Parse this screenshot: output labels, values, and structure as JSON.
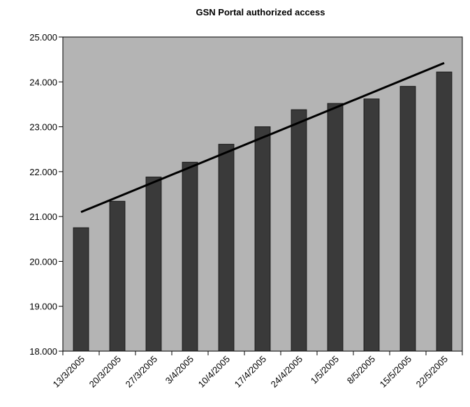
{
  "chart_data": {
    "type": "bar",
    "title": "GSN Portal authorized access",
    "xlabel": "",
    "ylabel": "",
    "categories": [
      "13/3/2005",
      "20/3/2005",
      "27/3/2005",
      "3/4/2005",
      "10/4/2005",
      "17/4/2005",
      "24/4/2005",
      "1/5/2005",
      "8/5/2005",
      "15/5/2005",
      "22/5/2005"
    ],
    "values": [
      20750,
      21340,
      21880,
      22210,
      22610,
      23000,
      23380,
      23520,
      23620,
      23900,
      24220
    ],
    "ylim": [
      18000,
      25000
    ],
    "yticks": [
      18000,
      19000,
      20000,
      21000,
      22000,
      23000,
      24000,
      25000
    ],
    "ytick_labels": [
      "18.000",
      "19.000",
      "20.000",
      "21.000",
      "22.000",
      "23.000",
      "24.000",
      "25.000"
    ],
    "trendline": {
      "type": "linear",
      "start": 21100,
      "end": 24420
    },
    "grid": false,
    "legend": "none",
    "colors": {
      "plot_background": "#b4b4b4",
      "bar": "#3a3a3a",
      "trendline": "#000000"
    }
  }
}
